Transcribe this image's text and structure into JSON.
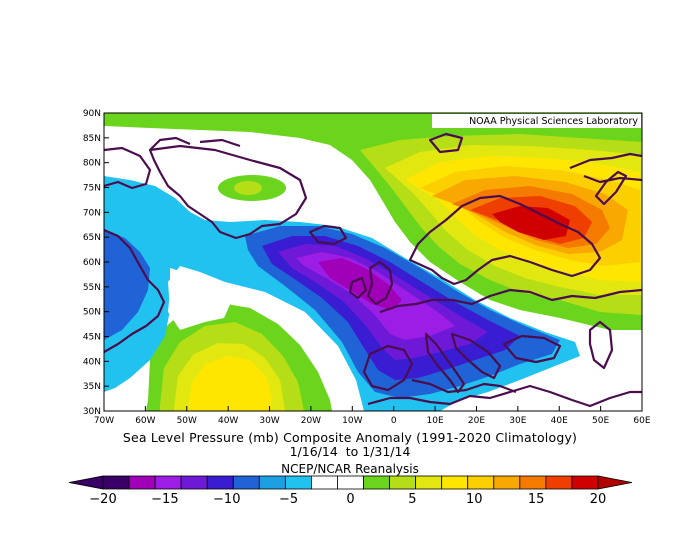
{
  "credit": "NOAA Physical Sciences Laboratory",
  "caption": {
    "title": "Sea Level Pressure (mb) Composite Anomaly (1991-2020 Climatology)",
    "dates": "1/16/14  to 1/31/14",
    "source": "NCEP/NCAR Reanalysis"
  },
  "map": {
    "lat_labels": [
      "90N",
      "85N",
      "80N",
      "75N",
      "70N",
      "65N",
      "60N",
      "55N",
      "50N",
      "45N",
      "40N",
      "35N",
      "30N"
    ],
    "lon_labels": [
      "70W",
      "60W",
      "50W",
      "40W",
      "30W",
      "20W",
      "10W",
      "0",
      "10E",
      "20E",
      "30E",
      "40E",
      "50E",
      "60E"
    ],
    "lat_range": [
      30,
      90
    ],
    "lon_range": [
      -70,
      60
    ]
  },
  "colorbar": {
    "labels": [
      "−20",
      "−15",
      "−10",
      "−5",
      "0",
      "5",
      "10",
      "15",
      "20"
    ],
    "colors": [
      "#3a0068",
      "#a000b8",
      "#9c1de6",
      "#6e19d8",
      "#3a1cd3",
      "#1f63d6",
      "#1d9fe4",
      "#21c2f0",
      "#ffffff",
      "#ffffff",
      "#6ad51c",
      "#b6de17",
      "#e2e80f",
      "#ffe600",
      "#fcd000",
      "#f8a800",
      "#f57a00",
      "#ee3f00",
      "#d10000"
    ],
    "lower_arrow": "#3a0068",
    "upper_arrow": "#b00000"
  },
  "field_colors": {
    "neg5": "#21c2f0",
    "neg8": "#1f63d6",
    "neg10": "#3a1cd3",
    "neg12": "#6e19d8",
    "neg14": "#9c1de6",
    "neg16": "#a000b8",
    "pos3": "#6ad51c",
    "pos5": "#b6de17",
    "pos7": "#e2e80f",
    "pos9": "#ffe600",
    "pos11": "#fcd000",
    "pos13": "#f8a800",
    "pos15": "#f57a00",
    "pos17": "#ee3f00",
    "pos19": "#d10000",
    "coast": "#4a0e4e"
  }
}
